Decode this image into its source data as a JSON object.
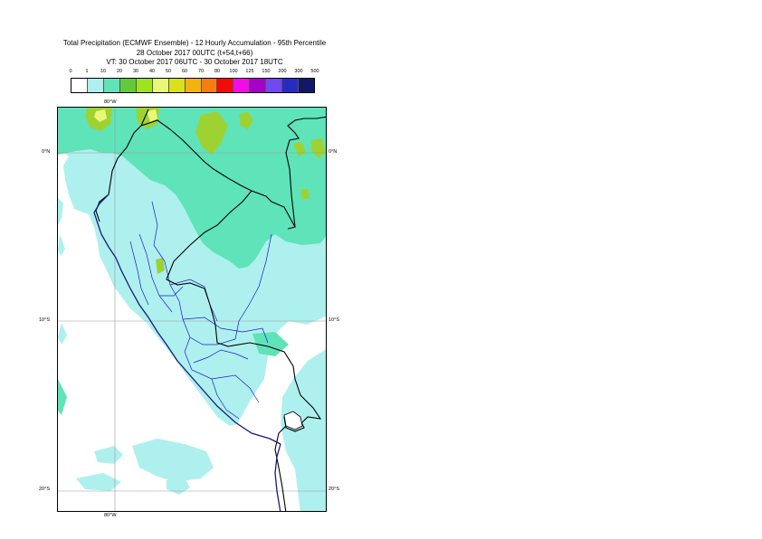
{
  "title": {
    "line1": "Total Precipitation (ECMWF Ensemble) - 12 Hourly Accumulation - 95th Percentile",
    "line2": "28 October 2017 00UTC (t+54,t+66)",
    "line3": "VT: 30 October 2017 06UTC - 30 October 2017 18UTC"
  },
  "legend": {
    "thresholds": [
      "0",
      "1",
      "10",
      "20",
      "30",
      "40",
      "50",
      "60",
      "70",
      "80",
      "100",
      "125",
      "150",
      "200",
      "300",
      "500"
    ],
    "colors": [
      "#ffffff",
      "#aef0ee",
      "#5fe3b9",
      "#63c93c",
      "#9ee320",
      "#e8f77a",
      "#d9e01c",
      "#f4b20e",
      "#f77d10",
      "#f50a0a",
      "#f20ce8",
      "#a500c7",
      "#7248f0",
      "#272cc1",
      "#131865"
    ]
  },
  "map": {
    "colors": {
      "ocean": "#ffffff",
      "light": "#aef0ee",
      "medium": "#5fe3b9",
      "green": "#9ed232",
      "yellow": "#e8f77a",
      "country_border": "#000000",
      "region_border": "#1b1bd0",
      "coastline": "#1a1a80",
      "gridline": "#9a9a9a"
    },
    "lat_labels": {
      "n0_left": "0°N",
      "n0_right": "0°N",
      "s10_left": "10°S",
      "s10_right": "10°S",
      "s20_left": "20°S",
      "s20_right": "20°S"
    },
    "lon_labels": {
      "top": "80°W",
      "bottom": "80°W"
    }
  }
}
